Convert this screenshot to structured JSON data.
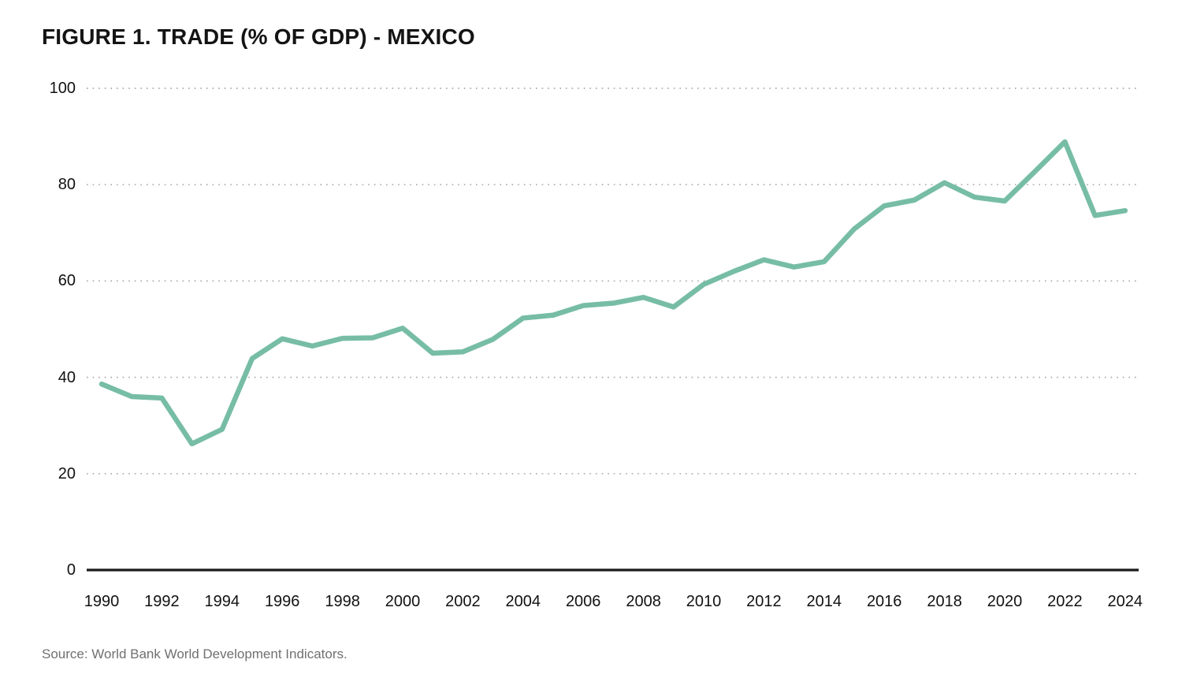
{
  "page": {
    "title": "FIGURE 1. TRADE (% OF GDP) - MEXICO",
    "source_note": "Source: World Bank World Development Indicators."
  },
  "colors": {
    "background": "#ffffff",
    "line": "#77BDA6",
    "baseline": "#1a1a1a",
    "gridline": "#aaaaaa",
    "title_text": "#141414",
    "tick_text": "#111111",
    "source_text": "#707070"
  },
  "chart_data": {
    "type": "line",
    "title": "FIGURE 1. TRADE (% OF GDP) - MEXICO",
    "xlabel": "",
    "ylabel": "",
    "ylim": [
      0,
      100
    ],
    "y_ticks": [
      0,
      20,
      40,
      60,
      80,
      100
    ],
    "x_ticks": [
      1990,
      1992,
      1994,
      1996,
      1998,
      2000,
      2002,
      2004,
      2006,
      2008,
      2010,
      2012,
      2014,
      2016,
      2018,
      2020,
      2022,
      2024
    ],
    "grid": "horizontal-dotted",
    "legend": "none",
    "x": [
      1990,
      1991,
      1992,
      1993,
      1994,
      1995,
      1996,
      1997,
      1998,
      1999,
      2000,
      2001,
      2002,
      2003,
      2004,
      2005,
      2006,
      2007,
      2008,
      2009,
      2010,
      2011,
      2012,
      2013,
      2014,
      2015,
      2016,
      2017,
      2018,
      2019,
      2020,
      2021,
      2022,
      2023,
      2024
    ],
    "series": [
      {
        "name": "Trade (% of GDP) - Mexico",
        "values": [
          38.6,
          36.0,
          35.7,
          26.2,
          29.2,
          43.9,
          48.0,
          46.5,
          48.1,
          48.2,
          50.2,
          45.0,
          45.3,
          47.9,
          52.3,
          52.9,
          54.9,
          55.4,
          56.6,
          54.6,
          59.3,
          62.0,
          64.4,
          62.9,
          64.0,
          70.8,
          75.6,
          76.8,
          80.4,
          77.4,
          76.6,
          82.7,
          88.9,
          73.6,
          74.6
        ]
      }
    ]
  }
}
